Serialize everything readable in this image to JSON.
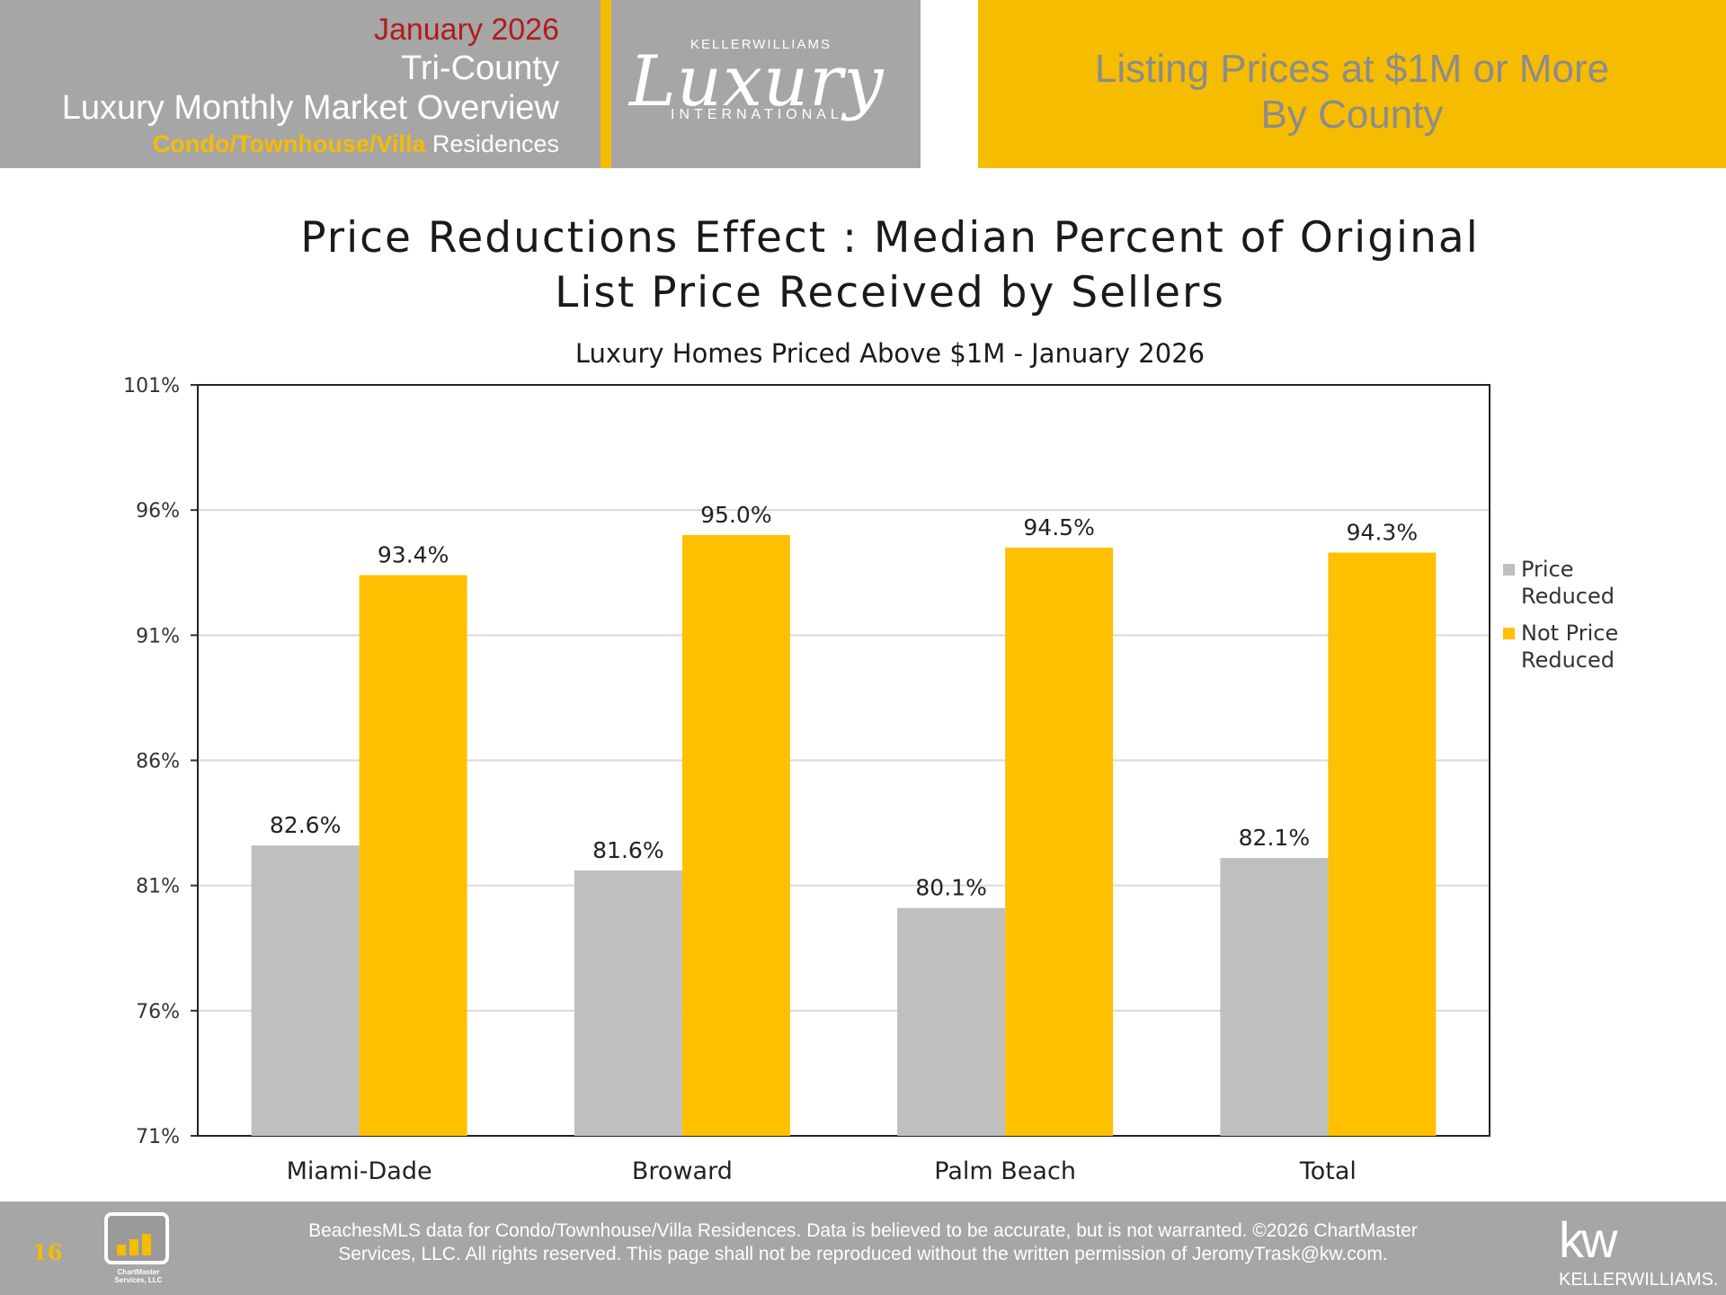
{
  "header": {
    "date": "January 2026",
    "region": "Tri-County",
    "report_title": "Luxury Monthly Market Overview",
    "segment_highlight": "Condo/Townhouse/Villa",
    "segment_rest": "Residences",
    "logo_top": "KELLERWILLIAMS",
    "logo_main": "Luxury",
    "logo_bottom": "INTERNATIONAL",
    "section_line1": "Listing Prices at $1M or More",
    "section_line2": "By County"
  },
  "colors": {
    "gray_panel": "#a6a6a6",
    "gold": "#f5bc00",
    "price_reduced": "#bfbfbf",
    "not_price_reduced": "#ffc000"
  },
  "chart_data": {
    "type": "bar",
    "title_line1": "Price Reductions Effect : Median Percent of Original",
    "title_line2": "List Price Received by Sellers",
    "subtitle": "Luxury Homes Priced Above $1M - January 2026",
    "categories": [
      "Miami-Dade",
      "Broward",
      "Palm Beach",
      "Total"
    ],
    "series": [
      {
        "name": "Price Reduced",
        "values": [
          82.6,
          81.6,
          80.1,
          82.1
        ],
        "labels": [
          "82.6%",
          "81.6%",
          "80.1%",
          "82.1%"
        ]
      },
      {
        "name": "Not Price Reduced",
        "values": [
          93.4,
          95.0,
          94.5,
          94.3
        ],
        "labels": [
          "93.4%",
          "95.0%",
          "94.5%",
          "94.3%"
        ]
      }
    ],
    "ylim": [
      71,
      101
    ],
    "yticks": [
      71,
      76,
      81,
      86,
      91,
      96,
      101
    ],
    "ytick_labels": [
      "71%",
      "76%",
      "81%",
      "86%",
      "91%",
      "96%",
      "101%"
    ],
    "grid": true,
    "legend_position": "right"
  },
  "legend": {
    "price_reduced_line1": "Price",
    "price_reduced_line2": "Reduced",
    "not_reduced_line1": "Not Price",
    "not_reduced_line2": "Reduced"
  },
  "footer": {
    "page_number": "16",
    "logo_name_line1": "ChartMaster",
    "logo_name_line2": "Services, LLC",
    "disclaimer_line1": "BeachesMLS data for Condo/Townhouse/Villa Residences.  Data is believed to be accurate, but is not warranted.   ©2026  ChartMaster",
    "disclaimer_line2": "Services, LLC.  All rights reserved. This page shall not be reproduced without the written permission of JeromyTrask@kw.com.",
    "kw_mark": "kw",
    "kw_name": "KELLERWILLIAMS."
  }
}
